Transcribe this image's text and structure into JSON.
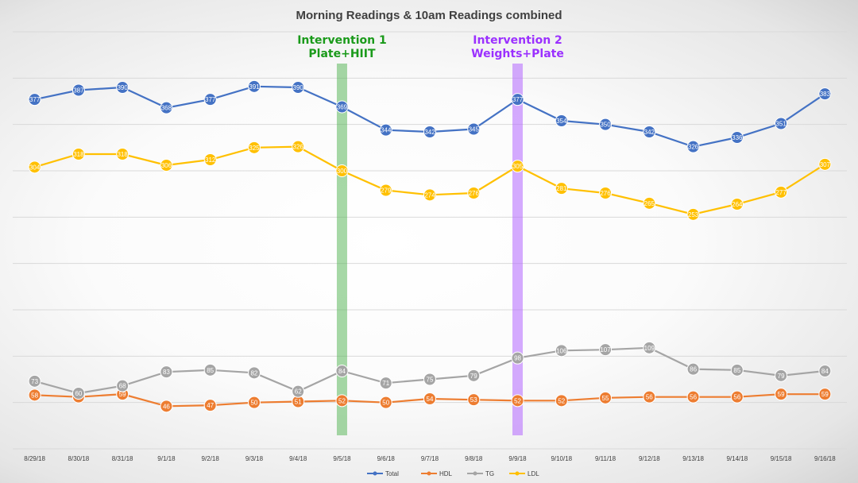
{
  "chart_data": {
    "type": "line",
    "title": "Morning Readings & 10am Readings combined",
    "categories": [
      "8/29/18",
      "8/30/18",
      "8/31/18",
      "9/1/18",
      "9/2/18",
      "9/3/18",
      "9/4/18",
      "9/5/18",
      "9/6/18",
      "9/7/18",
      "9/8/18",
      "9/9/18",
      "9/10/18",
      "9/11/18",
      "9/12/18",
      "9/13/18",
      "9/14/18",
      "9/15/18",
      "9/16/18"
    ],
    "ylim": [
      0,
      450
    ],
    "grid": true,
    "legend_position": "bottom",
    "series": [
      {
        "name": "Total",
        "color": "#4472c4",
        "values": [
          377,
          387,
          390,
          368,
          377,
          391,
          390,
          369,
          344,
          342,
          345,
          377,
          354,
          350,
          342,
          326,
          336,
          351,
          383
        ]
      },
      {
        "name": "HDL",
        "color": "#ed7d31",
        "values": [
          58,
          56,
          59,
          46,
          47,
          50,
          51,
          52,
          50,
          54,
          53,
          52,
          52,
          55,
          56,
          56,
          56,
          59,
          59
        ]
      },
      {
        "name": "TG",
        "color": "#a5a5a5",
        "values": [
          73,
          60,
          68,
          83,
          85,
          82,
          62,
          84,
          71,
          75,
          79,
          98,
          106,
          107,
          109,
          86,
          85,
          79,
          84
        ]
      },
      {
        "name": "LDL",
        "color": "#ffc000",
        "values": [
          304,
          318,
          318,
          306,
          312,
          325,
          326,
          300,
          279,
          274,
          276,
          305,
          281,
          276,
          265,
          253,
          264,
          277,
          307
        ]
      }
    ],
    "annotations": [
      {
        "lines": [
          "Intervention 1",
          "Plate+HIIT"
        ],
        "category": "9/5/18",
        "color": "#1a9a1a",
        "band_color": "#5cb85c"
      },
      {
        "lines": [
          "Intervention 2",
          "Weights+Plate"
        ],
        "category": "9/9/18",
        "color": "#9b30ff",
        "band_color": "#b266ff"
      }
    ]
  }
}
